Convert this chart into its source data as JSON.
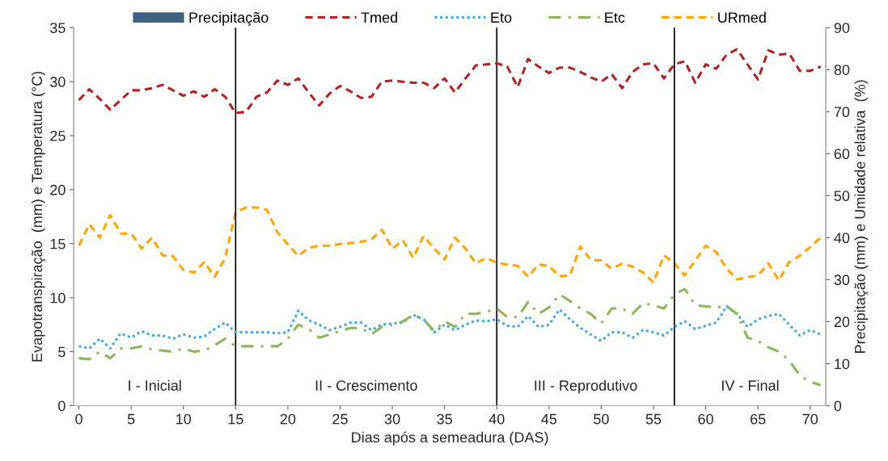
{
  "chart_data": {
    "type": "line",
    "x": [
      0,
      1,
      2,
      3,
      4,
      5,
      6,
      7,
      8,
      9,
      10,
      11,
      12,
      13,
      14,
      15,
      16,
      17,
      18,
      19,
      20,
      21,
      22,
      23,
      24,
      25,
      26,
      27,
      28,
      29,
      30,
      31,
      32,
      33,
      34,
      35,
      36,
      37,
      38,
      39,
      40,
      41,
      42,
      43,
      44,
      45,
      46,
      47,
      48,
      49,
      50,
      51,
      52,
      53,
      54,
      55,
      56,
      57,
      58,
      59,
      60,
      61,
      62,
      63,
      64,
      65,
      66,
      67,
      68,
      69,
      70,
      71
    ],
    "xlabel": "Dias após a semeadura (DAS)",
    "ylabel": "Evapotranspiração  (mm) e Temperatura (°C)",
    "y2label": "Precipitação (mm) e Umidade relativa  (%)",
    "xlim": [
      -0.5,
      71.5
    ],
    "xticks": [
      0,
      5,
      10,
      15,
      20,
      25,
      30,
      35,
      40,
      45,
      50,
      55,
      60,
      65,
      70
    ],
    "ylim": [
      0,
      35
    ],
    "yticks": [
      0,
      5,
      10,
      15,
      20,
      25,
      30,
      35
    ],
    "y2lim": [
      0,
      90
    ],
    "y2ticks": [
      0,
      10,
      20,
      30,
      40,
      50,
      60,
      70,
      80,
      90
    ],
    "grid": false,
    "legend": "top",
    "series": [
      {
        "name": "Precipitação",
        "type": "bar",
        "axis": "y2",
        "color": "#3d6180",
        "values": [
          0,
          0,
          0,
          0,
          0,
          0,
          0,
          0,
          0,
          0,
          0,
          0,
          0,
          0,
          0,
          0,
          0,
          0,
          0,
          0,
          0,
          0,
          0,
          0,
          0,
          0,
          0,
          0,
          0,
          0,
          0,
          0,
          0,
          0,
          0,
          0,
          0,
          0,
          0,
          0,
          0,
          0,
          0,
          0,
          0,
          0,
          0,
          0,
          0,
          0,
          0,
          0,
          0,
          0,
          0,
          0,
          0,
          0,
          0,
          0,
          0,
          0,
          0,
          0,
          0,
          0,
          0,
          0,
          0,
          0,
          0,
          0
        ]
      },
      {
        "name": "Tmed",
        "line_style": "dashed",
        "color": "#b22222",
        "values": [
          28.3,
          29.3,
          28.4,
          27.4,
          28.3,
          29.2,
          29.2,
          29.4,
          29.7,
          29.2,
          28.7,
          29.1,
          28.6,
          29.3,
          28.6,
          27.1,
          27.2,
          28.6,
          29.0,
          30.1,
          29.7,
          30.3,
          29.0,
          27.8,
          28.9,
          29.6,
          29.1,
          28.5,
          28.6,
          30.0,
          30.1,
          30.0,
          29.9,
          29.9,
          29.4,
          30.3,
          29.0,
          30.3,
          31.5,
          31.6,
          31.7,
          31.4,
          29.5,
          32.1,
          31.4,
          30.8,
          31.3,
          31.3,
          30.9,
          30.4,
          30.0,
          30.7,
          29.4,
          30.9,
          31.6,
          31.7,
          30.3,
          31.6,
          31.9,
          29.9,
          31.6,
          31.2,
          32.5,
          33.0,
          31.6,
          30.2,
          32.9,
          32.5,
          32.6,
          31.0,
          31.0,
          31.4
        ]
      },
      {
        "name": "Eto",
        "line_style": "dotted",
        "color": "#41a8e8",
        "values": [
          5.5,
          5.3,
          6.2,
          5.3,
          6.7,
          6.3,
          6.9,
          6.5,
          6.5,
          6.2,
          6.6,
          6.3,
          6.4,
          7.1,
          7.7,
          6.8,
          6.8,
          6.8,
          6.8,
          6.7,
          6.8,
          8.8,
          7.9,
          7.5,
          7.0,
          7.3,
          7.7,
          7.7,
          7.0,
          7.5,
          7.6,
          7.7,
          8.4,
          8.0,
          6.8,
          7.5,
          7.0,
          7.5,
          7.9,
          7.8,
          8.0,
          7.4,
          7.3,
          8.3,
          7.3,
          7.5,
          8.9,
          8.0,
          7.2,
          6.6,
          6.0,
          6.8,
          6.8,
          6.3,
          7.0,
          6.8,
          6.5,
          7.3,
          7.8,
          7.1,
          7.4,
          7.7,
          9.2,
          8.5,
          7.3,
          8.0,
          8.3,
          8.5,
          7.5,
          6.5,
          7.0,
          6.6
        ]
      },
      {
        "name": "Etc",
        "line_style": "dashdot",
        "color": "#8db65a",
        "values": [
          4.4,
          4.3,
          5.0,
          4.4,
          5.3,
          5.3,
          5.5,
          5.2,
          5.1,
          5.0,
          5.3,
          5.0,
          5.1,
          5.6,
          6.2,
          5.5,
          5.5,
          5.5,
          5.5,
          5.5,
          6.2,
          7.5,
          7.1,
          6.3,
          6.6,
          6.9,
          7.2,
          7.2,
          6.6,
          7.3,
          7.5,
          7.8,
          8.4,
          8.0,
          6.9,
          7.8,
          7.3,
          8.5,
          8.5,
          8.7,
          9.0,
          8.2,
          8.2,
          9.6,
          8.5,
          9.1,
          10.3,
          9.7,
          9.0,
          8.5,
          7.6,
          9.0,
          9.0,
          8.5,
          9.5,
          9.3,
          9.0,
          10.3,
          10.8,
          9.3,
          9.2,
          9.1,
          9.2,
          8.5,
          6.3,
          6.0,
          5.4,
          5.0,
          4.2,
          2.8,
          2.2,
          1.9
        ]
      },
      {
        "name": "URmed",
        "axis": "y2",
        "line_style": "dashed",
        "color": "#ffa500",
        "values": [
          38.1,
          43.2,
          40.0,
          45.4,
          41.0,
          41.0,
          37.4,
          40.0,
          35.8,
          35.6,
          32.3,
          31.7,
          34.2,
          30.7,
          35.2,
          46.1,
          47.2,
          47.2,
          46.6,
          41.3,
          38.4,
          35.7,
          37.6,
          38.1,
          38.1,
          38.5,
          38.7,
          39.0,
          39.6,
          41.9,
          37.4,
          39.4,
          35.2,
          40.4,
          37.4,
          34.8,
          40.0,
          37.4,
          33.9,
          35.2,
          34.0,
          33.6,
          33.3,
          30.7,
          33.6,
          33.3,
          30.8,
          31.0,
          37.9,
          34.7,
          34.6,
          32.6,
          33.8,
          33.1,
          31.7,
          29.3,
          35.8,
          33.9,
          31.0,
          34.6,
          38.1,
          36.6,
          32.6,
          30.1,
          30.6,
          31.0,
          33.9,
          29.8,
          34.2,
          35.7,
          37.8,
          40.0
        ]
      }
    ],
    "ref_lines": [
      {
        "axis": "x",
        "value": 15,
        "color": "#000000",
        "line_style": "solid"
      },
      {
        "axis": "x",
        "value": 40,
        "color": "#000000",
        "line_style": "solid"
      },
      {
        "axis": "x",
        "value": 57,
        "color": "#000000",
        "line_style": "solid"
      }
    ],
    "annotations": [
      "I - Inicial",
      "II - Crescimento",
      "III - Reprodutivo",
      "IV - Final"
    ]
  }
}
